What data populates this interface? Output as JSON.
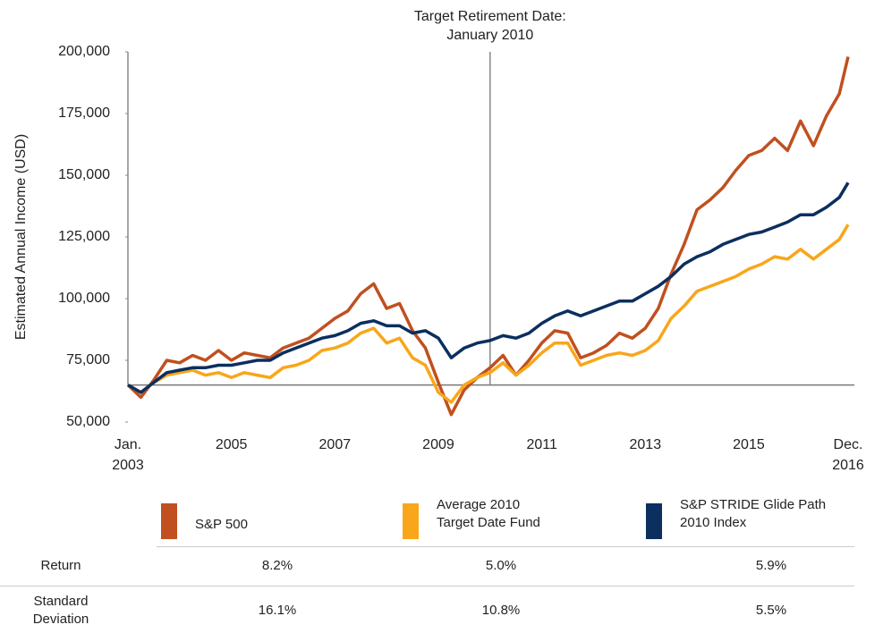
{
  "chart_data": {
    "type": "line",
    "ylabel": "Estimated Annual Income (USD)",
    "annotation": {
      "text": [
        "Target Retirement Date:",
        "January 2010"
      ],
      "x": 2010
    },
    "baseline": 65000,
    "x": [
      2003,
      2003.25,
      2003.5,
      2003.75,
      2004,
      2004.25,
      2004.5,
      2004.75,
      2005,
      2005.25,
      2005.5,
      2005.75,
      2006,
      2006.25,
      2006.5,
      2006.75,
      2007,
      2007.25,
      2007.5,
      2007.75,
      2008,
      2008.25,
      2008.5,
      2008.75,
      2009,
      2009.25,
      2009.5,
      2009.75,
      2010,
      2010.25,
      2010.5,
      2010.75,
      2011,
      2011.25,
      2011.5,
      2011.75,
      2012,
      2012.25,
      2012.5,
      2012.75,
      2013,
      2013.25,
      2013.5,
      2013.75,
      2014,
      2014.25,
      2014.5,
      2014.75,
      2015,
      2015.25,
      2015.5,
      2015.75,
      2016,
      2016.25,
      2016.5,
      2016.75,
      2016.92
    ],
    "series": [
      {
        "name": "S&P 500",
        "color": "#c0501f",
        "values": [
          65000,
          60000,
          67000,
          75000,
          74000,
          77000,
          75000,
          79000,
          75000,
          78000,
          77000,
          76000,
          80000,
          82000,
          84000,
          88000,
          92000,
          95000,
          102000,
          106000,
          96000,
          98000,
          87000,
          80000,
          66000,
          53000,
          63000,
          68000,
          72000,
          77000,
          69000,
          75000,
          82000,
          87000,
          86000,
          76000,
          78000,
          81000,
          86000,
          84000,
          88000,
          96000,
          110000,
          122000,
          136000,
          140000,
          145000,
          152000,
          158000,
          160000,
          165000,
          160000,
          172000,
          162000,
          174000,
          183000,
          198000
        ]
      },
      {
        "name": "Average 2010\nTarget Date Fund",
        "color": "#f9a61a",
        "values": [
          65000,
          62000,
          66000,
          69000,
          70000,
          71000,
          69000,
          70000,
          68000,
          70000,
          69000,
          68000,
          72000,
          73000,
          75000,
          79000,
          80000,
          82000,
          86000,
          88000,
          82000,
          84000,
          76000,
          73000,
          62000,
          58000,
          65000,
          68000,
          70000,
          74000,
          69000,
          73000,
          78000,
          82000,
          82000,
          73000,
          75000,
          77000,
          78000,
          77000,
          79000,
          83000,
          92000,
          97000,
          103000,
          105000,
          107000,
          109000,
          112000,
          114000,
          117000,
          116000,
          120000,
          116000,
          120000,
          124000,
          130000
        ]
      },
      {
        "name": "S&P STRIDE Glide Path\n2010 Index",
        "color": "#0b2f5e",
        "values": [
          65000,
          62000,
          66000,
          70000,
          71000,
          72000,
          72000,
          73000,
          73000,
          74000,
          75000,
          75000,
          78000,
          80000,
          82000,
          84000,
          85000,
          87000,
          90000,
          91000,
          89000,
          89000,
          86000,
          87000,
          84000,
          76000,
          80000,
          82000,
          83000,
          85000,
          84000,
          86000,
          90000,
          93000,
          95000,
          93000,
          95000,
          97000,
          99000,
          99000,
          102000,
          105000,
          109000,
          114000,
          117000,
          119000,
          122000,
          124000,
          126000,
          127000,
          129000,
          131000,
          134000,
          134000,
          137000,
          141000,
          147000
        ]
      }
    ],
    "xlim": [
      2003,
      2016.92
    ],
    "xticks": [
      {
        "value": 2003,
        "label": "Jan.\n2003"
      },
      2005,
      2007,
      2009,
      2011,
      2013,
      2015,
      {
        "value": 2016.92,
        "label": "Dec.\n2016"
      }
    ],
    "ylim": [
      50000,
      200000
    ],
    "yticks": [
      {
        "value": 50000,
        "label": "50,000"
      },
      {
        "value": 75000,
        "label": "75,000"
      },
      {
        "value": 100000,
        "label": "100,000"
      },
      {
        "value": 125000,
        "label": "125,000"
      },
      {
        "value": 150000,
        "label": "150,000"
      },
      {
        "value": 175000,
        "label": "175,000"
      },
      {
        "value": 200000,
        "label": "200,000"
      }
    ],
    "grid": false
  },
  "table": {
    "rows": [
      [
        "Return",
        "8.2%",
        "5.0%",
        "5.9%"
      ],
      [
        "Standard\nDeviation",
        "16.1%",
        "10.8%",
        "5.5%"
      ]
    ]
  }
}
